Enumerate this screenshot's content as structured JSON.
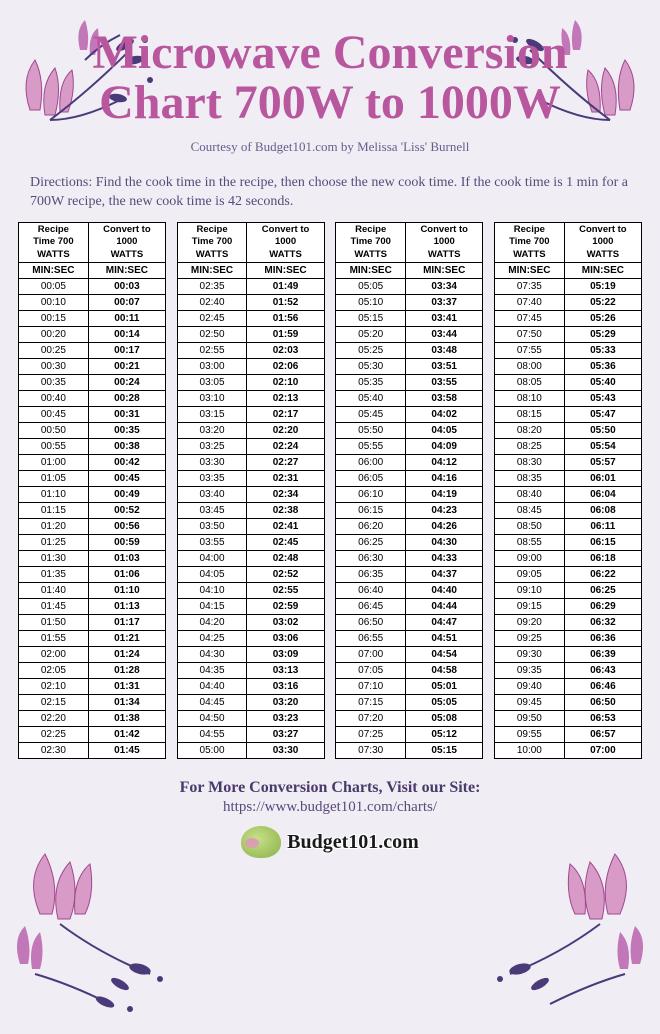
{
  "title_line1": "Microwave Conversion",
  "title_line2": "Chart 700W to 1000W",
  "subtitle": "Courtesy of Budget101.com by Melissa 'Liss' Burnell",
  "directions": "Directions: Find the cook time in the recipe, then choose the new cook time. If the cook time is 1 min for a 700W recipe, the new cook time is 42 seconds.",
  "header_col1_l1": "Recipe",
  "header_col1_l2": "Time 700",
  "header_col1_l3": "WATTS",
  "header_col2_l1": "Convert to",
  "header_col2_l2": "1000",
  "header_col2_l3": "WATTS",
  "header_sub": "MIN:SEC",
  "tables": [
    [
      [
        "00:05",
        "00:03"
      ],
      [
        "00:10",
        "00:07"
      ],
      [
        "00:15",
        "00:11"
      ],
      [
        "00:20",
        "00:14"
      ],
      [
        "00:25",
        "00:17"
      ],
      [
        "00:30",
        "00:21"
      ],
      [
        "00:35",
        "00:24"
      ],
      [
        "00:40",
        "00:28"
      ],
      [
        "00:45",
        "00:31"
      ],
      [
        "00:50",
        "00:35"
      ],
      [
        "00:55",
        "00:38"
      ],
      [
        "01:00",
        "00:42"
      ],
      [
        "01:05",
        "00:45"
      ],
      [
        "01:10",
        "00:49"
      ],
      [
        "01:15",
        "00:52"
      ],
      [
        "01:20",
        "00:56"
      ],
      [
        "01:25",
        "00:59"
      ],
      [
        "01:30",
        "01:03"
      ],
      [
        "01:35",
        "01:06"
      ],
      [
        "01:40",
        "01:10"
      ],
      [
        "01:45",
        "01:13"
      ],
      [
        "01:50",
        "01:17"
      ],
      [
        "01:55",
        "01:21"
      ],
      [
        "02:00",
        "01:24"
      ],
      [
        "02:05",
        "01:28"
      ],
      [
        "02:10",
        "01:31"
      ],
      [
        "02:15",
        "01:34"
      ],
      [
        "02:20",
        "01:38"
      ],
      [
        "02:25",
        "01:42"
      ],
      [
        "02:30",
        "01:45"
      ]
    ],
    [
      [
        "02:35",
        "01:49"
      ],
      [
        "02:40",
        "01:52"
      ],
      [
        "02:45",
        "01:56"
      ],
      [
        "02:50",
        "01:59"
      ],
      [
        "02:55",
        "02:03"
      ],
      [
        "03:00",
        "02:06"
      ],
      [
        "03:05",
        "02:10"
      ],
      [
        "03:10",
        "02:13"
      ],
      [
        "03:15",
        "02:17"
      ],
      [
        "03:20",
        "02:20"
      ],
      [
        "03:25",
        "02:24"
      ],
      [
        "03:30",
        "02:27"
      ],
      [
        "03:35",
        "02:31"
      ],
      [
        "03:40",
        "02:34"
      ],
      [
        "03:45",
        "02:38"
      ],
      [
        "03:50",
        "02:41"
      ],
      [
        "03:55",
        "02:45"
      ],
      [
        "04:00",
        "02:48"
      ],
      [
        "04:05",
        "02:52"
      ],
      [
        "04:10",
        "02:55"
      ],
      [
        "04:15",
        "02:59"
      ],
      [
        "04:20",
        "03:02"
      ],
      [
        "04:25",
        "03:06"
      ],
      [
        "04:30",
        "03:09"
      ],
      [
        "04:35",
        "03:13"
      ],
      [
        "04:40",
        "03:16"
      ],
      [
        "04:45",
        "03:20"
      ],
      [
        "04:50",
        "03:23"
      ],
      [
        "04:55",
        "03:27"
      ],
      [
        "05:00",
        "03:30"
      ]
    ],
    [
      [
        "05:05",
        "03:34"
      ],
      [
        "05:10",
        "03:37"
      ],
      [
        "05:15",
        "03:41"
      ],
      [
        "05:20",
        "03:44"
      ],
      [
        "05:25",
        "03:48"
      ],
      [
        "05:30",
        "03:51"
      ],
      [
        "05:35",
        "03:55"
      ],
      [
        "05:40",
        "03:58"
      ],
      [
        "05:45",
        "04:02"
      ],
      [
        "05:50",
        "04:05"
      ],
      [
        "05:55",
        "04:09"
      ],
      [
        "06:00",
        "04:12"
      ],
      [
        "06:05",
        "04:16"
      ],
      [
        "06:10",
        "04:19"
      ],
      [
        "06:15",
        "04:23"
      ],
      [
        "06:20",
        "04:26"
      ],
      [
        "06:25",
        "04:30"
      ],
      [
        "06:30",
        "04:33"
      ],
      [
        "06:35",
        "04:37"
      ],
      [
        "06:40",
        "04:40"
      ],
      [
        "06:45",
        "04:44"
      ],
      [
        "06:50",
        "04:47"
      ],
      [
        "06:55",
        "04:51"
      ],
      [
        "07:00",
        "04:54"
      ],
      [
        "07:05",
        "04:58"
      ],
      [
        "07:10",
        "05:01"
      ],
      [
        "07:15",
        "05:05"
      ],
      [
        "07:20",
        "05:08"
      ],
      [
        "07:25",
        "05:12"
      ],
      [
        "07:30",
        "05:15"
      ]
    ],
    [
      [
        "07:35",
        "05:19"
      ],
      [
        "07:40",
        "05:22"
      ],
      [
        "07:45",
        "05:26"
      ],
      [
        "07:50",
        "05:29"
      ],
      [
        "07:55",
        "05:33"
      ],
      [
        "08:00",
        "05:36"
      ],
      [
        "08:05",
        "05:40"
      ],
      [
        "08:10",
        "05:43"
      ],
      [
        "08:15",
        "05:47"
      ],
      [
        "08:20",
        "05:50"
      ],
      [
        "08:25",
        "05:54"
      ],
      [
        "08:30",
        "05:57"
      ],
      [
        "08:35",
        "06:01"
      ],
      [
        "08:40",
        "06:04"
      ],
      [
        "08:45",
        "06:08"
      ],
      [
        "08:50",
        "06:11"
      ],
      [
        "08:55",
        "06:15"
      ],
      [
        "09:00",
        "06:18"
      ],
      [
        "09:05",
        "06:22"
      ],
      [
        "09:10",
        "06:25"
      ],
      [
        "09:15",
        "06:29"
      ],
      [
        "09:20",
        "06:32"
      ],
      [
        "09:25",
        "06:36"
      ],
      [
        "09:30",
        "06:39"
      ],
      [
        "09:35",
        "06:43"
      ],
      [
        "09:40",
        "06:46"
      ],
      [
        "09:45",
        "06:50"
      ],
      [
        "09:50",
        "06:53"
      ],
      [
        "09:55",
        "06:57"
      ],
      [
        "10:00",
        "07:00"
      ]
    ]
  ],
  "footer_text": "For More Conversion Charts, Visit our Site:",
  "footer_url": "https://www.budget101.com/charts/",
  "logo_text": "Budget101.com",
  "colors": {
    "title": "#b8569e",
    "text": "#5a4a7a",
    "bg": "#f0edf5",
    "flower_light": "#d89bc8",
    "flower_dark": "#a04890",
    "leaf": "#4a3a7a"
  }
}
